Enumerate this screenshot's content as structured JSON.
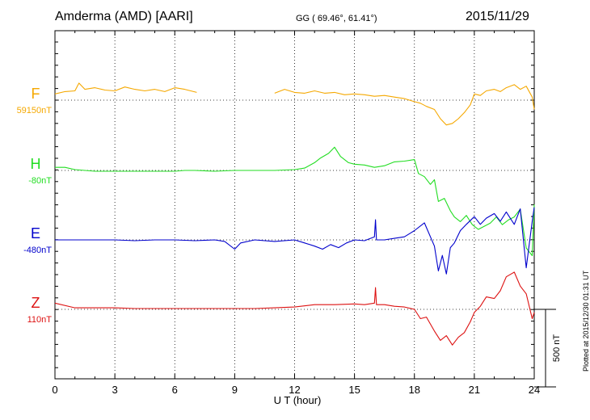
{
  "header": {
    "station": "Amderma (AMD)  [AARI]",
    "coords": "GG ( 69.46°,  61.41°)",
    "date": "2015/11/29"
  },
  "footer_note": "Plotted at 2015/12/30 01:31  UT",
  "chart_data": {
    "type": "line",
    "title": "Amderma (AMD)  [AARI]",
    "xlabel": "U T (hour)",
    "xlim": [
      0,
      24
    ],
    "xticks": [
      0,
      3,
      6,
      9,
      12,
      15,
      18,
      21,
      24
    ],
    "grid": true,
    "scale_bar": {
      "label": "500 nT",
      "value": 500
    },
    "series": [
      {
        "name": "F",
        "baseline_label": "59150nT",
        "baseline": 59150,
        "color": "#f5a800",
        "x": [
          0,
          0.5,
          1,
          1.2,
          1.5,
          2,
          2.5,
          3,
          3.5,
          4,
          4.5,
          5,
          5.5,
          6,
          6.5,
          7.1,
          null,
          11,
          11.5,
          12,
          12.5,
          13,
          13.5,
          14,
          14.5,
          15,
          15.5,
          16,
          16.5,
          17,
          17.5,
          18,
          18.3,
          18.6,
          19,
          19.3,
          19.6,
          19.9,
          20.2,
          20.5,
          20.8,
          21,
          21.3,
          21.6,
          22,
          22.3,
          22.6,
          23,
          23.3,
          23.6,
          23.9,
          24
        ],
        "y": [
          40,
          55,
          60,
          110,
          70,
          80,
          65,
          60,
          85,
          70,
          60,
          70,
          55,
          80,
          70,
          50,
          null,
          45,
          70,
          50,
          45,
          60,
          45,
          50,
          35,
          40,
          35,
          25,
          30,
          20,
          10,
          -10,
          -20,
          -40,
          -60,
          -120,
          -160,
          -150,
          -120,
          -80,
          -30,
          40,
          30,
          60,
          70,
          55,
          80,
          100,
          70,
          90,
          20,
          -60
        ]
      },
      {
        "name": "H",
        "baseline_label": "-80nT",
        "baseline": -80,
        "color": "#22dd22",
        "x": [
          0,
          0.5,
          1,
          2,
          3,
          4,
          5,
          6,
          6.5,
          7,
          8,
          9,
          10,
          11,
          12,
          12.5,
          13,
          13.3,
          13.7,
          14,
          14.3,
          14.7,
          15,
          15.5,
          16,
          16.5,
          17,
          17.5,
          18,
          18.2,
          18.5,
          18.8,
          19,
          19.2,
          19.5,
          19.8,
          20,
          20.3,
          20.6,
          20.9,
          21.2,
          21.5,
          21.8,
          22.1,
          22.4,
          22.7,
          23,
          23.3,
          23.6,
          23.9,
          24
        ],
        "y": [
          20,
          20,
          5,
          -5,
          -5,
          -5,
          -5,
          -5,
          0,
          0,
          -5,
          0,
          0,
          0,
          5,
          15,
          50,
          80,
          110,
          150,
          90,
          50,
          40,
          35,
          20,
          30,
          55,
          60,
          70,
          -20,
          -40,
          -90,
          -60,
          -200,
          -180,
          -260,
          -300,
          -330,
          -290,
          -350,
          -380,
          -360,
          -340,
          -300,
          -350,
          -320,
          -300,
          -250,
          -500,
          -550,
          -220
        ]
      },
      {
        "name": "E",
        "baseline_label": "-480nT",
        "baseline": -480,
        "color": "#0000cc",
        "x": [
          0,
          1,
          2,
          3,
          4,
          5,
          6,
          7,
          8,
          8.5,
          9,
          9.3,
          10,
          11,
          12,
          12.5,
          13,
          13.4,
          13.8,
          14.2,
          14.6,
          15,
          15.5,
          16,
          16.05,
          16.1,
          16.5,
          17,
          17.5,
          18,
          18.5,
          19,
          19.2,
          19.4,
          19.6,
          19.8,
          20,
          20.3,
          20.6,
          21,
          21.3,
          21.6,
          22,
          22.3,
          22.6,
          23,
          23.3,
          23.6,
          23.9,
          24
        ],
        "y": [
          0,
          0,
          0,
          0,
          -5,
          0,
          0,
          -5,
          0,
          -10,
          -60,
          -20,
          0,
          -10,
          0,
          -20,
          -40,
          -60,
          -30,
          -50,
          -20,
          0,
          -5,
          20,
          130,
          0,
          0,
          10,
          20,
          60,
          110,
          -40,
          -200,
          -100,
          -220,
          -50,
          -20,
          60,
          100,
          150,
          100,
          140,
          170,
          120,
          180,
          100,
          200,
          -180,
          120,
          210
        ]
      },
      {
        "name": "Z",
        "baseline_label": "110nT",
        "baseline": 110,
        "color": "#dd1111",
        "x": [
          0,
          1,
          2,
          3,
          4,
          5,
          6,
          7,
          8,
          9,
          10,
          11,
          12,
          13,
          14,
          15,
          15.5,
          16,
          16.05,
          16.1,
          16.5,
          17,
          17.5,
          18,
          18.3,
          18.6,
          19,
          19.3,
          19.6,
          19.9,
          20.2,
          20.5,
          20.8,
          21,
          21.3,
          21.6,
          22,
          22.3,
          22.6,
          23,
          23.3,
          23.6,
          23.9,
          24
        ],
        "y": [
          40,
          10,
          10,
          10,
          5,
          5,
          5,
          5,
          5,
          5,
          5,
          10,
          15,
          30,
          30,
          35,
          30,
          40,
          140,
          30,
          30,
          20,
          15,
          0,
          -60,
          -50,
          -140,
          -200,
          -170,
          -230,
          -180,
          -150,
          -80,
          -20,
          20,
          80,
          70,
          120,
          210,
          240,
          150,
          100,
          -60,
          -20
        ]
      }
    ]
  }
}
